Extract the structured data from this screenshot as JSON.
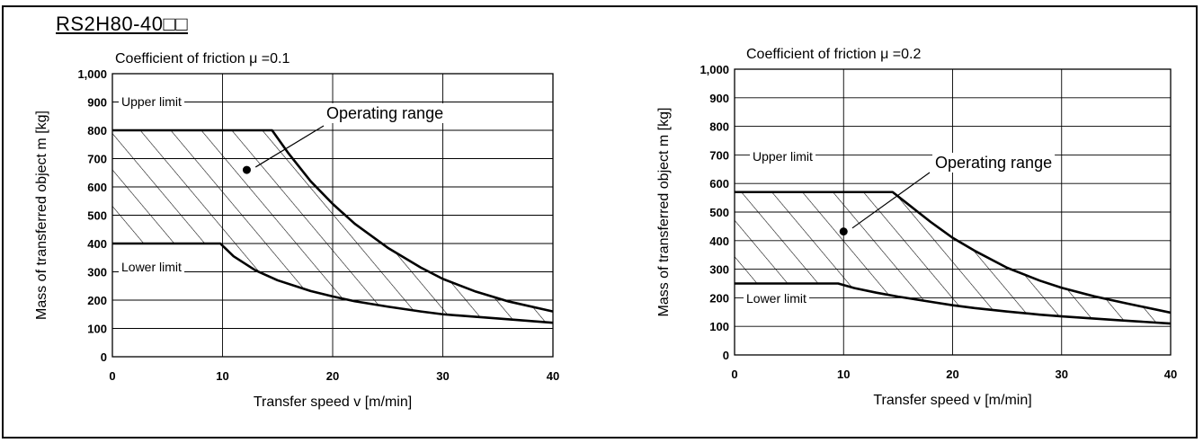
{
  "model_label": "RS2H80-40□□",
  "chart_data": [
    {
      "type": "area",
      "title": "Coefficient of friction  μ =0.1",
      "xlabel": "Transfer speed v [m/min]",
      "ylabel": "Mass of transferred object m [kg]",
      "xlim": [
        0,
        40
      ],
      "ylim": [
        0,
        1000
      ],
      "x_ticks": [
        "0",
        "10",
        "20",
        "30",
        "40"
      ],
      "y_ticks": [
        "0",
        "100",
        "200",
        "300",
        "400",
        "500",
        "600",
        "700",
        "800",
        "900",
        "1,000"
      ],
      "grid": true,
      "annotations": {
        "upper": "Upper limit",
        "lower": "Lower limit",
        "range": "Operating range"
      },
      "series": [
        {
          "name": "Upper limit",
          "x": [
            0,
            14.5,
            16,
            18,
            20,
            22,
            25,
            28,
            30,
            33,
            36,
            40
          ],
          "y": [
            800,
            800,
            718,
            620,
            540,
            470,
            385,
            315,
            275,
            230,
            195,
            160
          ]
        },
        {
          "name": "Lower limit",
          "x": [
            0,
            9.8,
            11,
            13,
            15,
            18,
            20,
            22,
            25,
            28,
            30,
            35,
            40
          ],
          "y": [
            400,
            400,
            355,
            305,
            270,
            232,
            213,
            196,
            177,
            160,
            150,
            135,
            120
          ]
        }
      ]
    },
    {
      "type": "area",
      "title": "Coefficient of friction  μ =0.2",
      "xlabel": "Transfer speed v [m/min]",
      "ylabel": "Mass of transferred object m [kg]",
      "xlim": [
        0,
        40
      ],
      "ylim": [
        0,
        1000
      ],
      "x_ticks": [
        "0",
        "10",
        "20",
        "30",
        "40"
      ],
      "y_ticks": [
        "0",
        "100",
        "200",
        "300",
        "400",
        "500",
        "600",
        "700",
        "800",
        "900",
        "1,000"
      ],
      "grid": true,
      "annotations": {
        "upper": "Upper limit",
        "lower": "Lower limit",
        "range": "Operating range"
      },
      "series": [
        {
          "name": "Upper limit",
          "x": [
            0,
            14.5,
            16,
            18,
            20,
            22,
            25,
            28,
            30,
            33,
            36,
            40
          ],
          "y": [
            570,
            570,
            525,
            465,
            410,
            365,
            305,
            260,
            235,
            205,
            180,
            148
          ]
        },
        {
          "name": "Lower limit",
          "x": [
            0,
            9.5,
            11,
            13,
            15,
            18,
            20,
            22,
            25,
            28,
            30,
            35,
            40
          ],
          "y": [
            250,
            250,
            234,
            218,
            204,
            186,
            174,
            164,
            152,
            141,
            135,
            122,
            110
          ]
        }
      ]
    }
  ]
}
